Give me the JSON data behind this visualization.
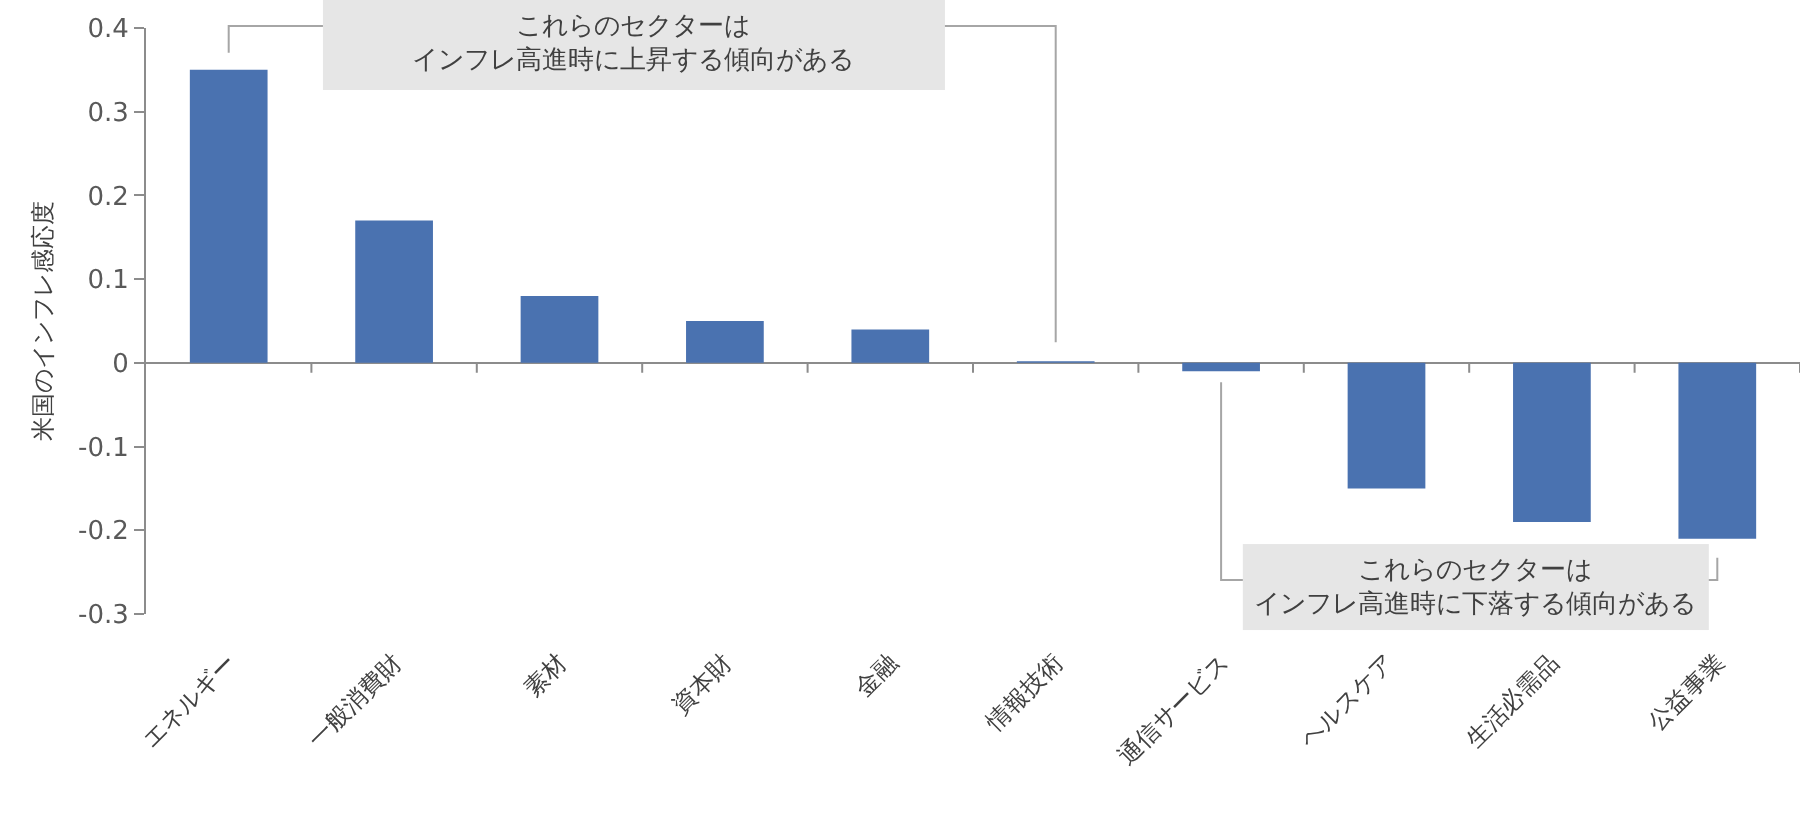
{
  "chart_data": {
    "type": "bar",
    "ylabel": "米国のインフレ感応度",
    "categories": [
      "エネルギー",
      "一般消費財",
      "素材",
      "資本財",
      "金融",
      "情報技術",
      "通信サービス",
      "ヘルスケア",
      "生活必需品",
      "公益事業"
    ],
    "values": [
      0.35,
      0.17,
      0.08,
      0.05,
      0.04,
      0.002,
      -0.01,
      -0.15,
      -0.19,
      -0.21
    ],
    "color": "#4a72b0",
    "ylim": [
      -0.3,
      0.4
    ],
    "yticks": [
      -0.3,
      -0.2,
      -0.1,
      0,
      0.1,
      0.2,
      0.3,
      0.4
    ],
    "annotations": [
      "これらのセクターはインフレ高進時に上昇する傾向がある",
      "これらのセクターはインフレ高進時に下落する傾向がある"
    ]
  }
}
